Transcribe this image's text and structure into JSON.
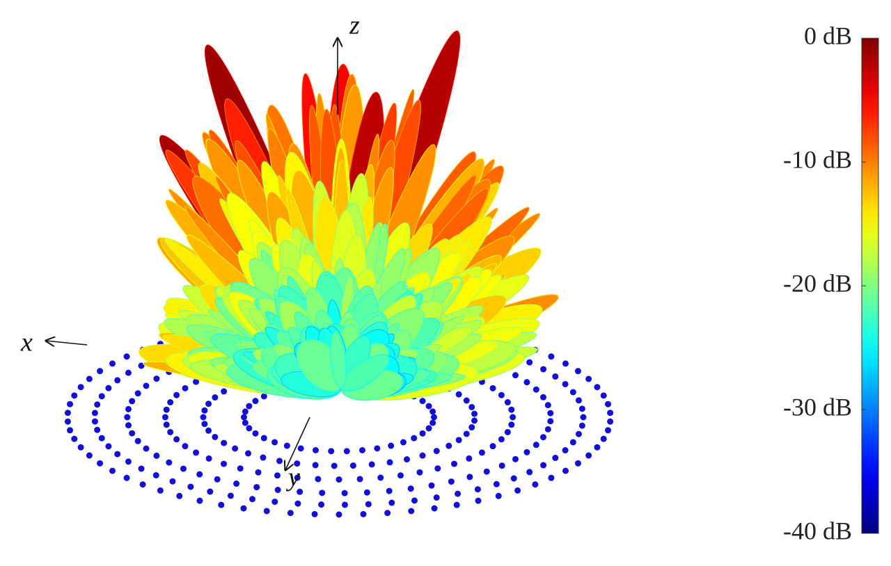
{
  "chart_data": {
    "type": "surface",
    "axis_labels": {
      "x": "x",
      "y": "y",
      "z": "z"
    },
    "colormap": "jet",
    "clim": [
      -40,
      0
    ],
    "cticks": [
      {
        "value": 0,
        "label": "0 dB"
      },
      {
        "value": -10,
        "label": "-10 dB"
      },
      {
        "value": -20,
        "label": "-20 dB"
      },
      {
        "value": -30,
        "label": "-30 dB"
      },
      {
        "value": -40,
        "label": "-40 dB"
      }
    ]
  }
}
